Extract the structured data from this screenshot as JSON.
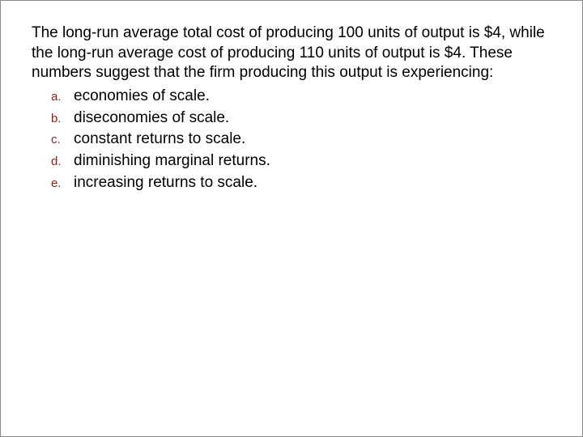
{
  "question": {
    "text": "The long-run average total cost of producing 100 units of output is $4, while the long-run average cost of producing 110 units of output is $4.  These numbers suggest that the firm producing this output is experiencing:",
    "text_color": "#000000",
    "fontsize": 19
  },
  "options": [
    {
      "marker": "a.",
      "text": "economies of scale."
    },
    {
      "marker": "b.",
      "text": "diseconomies of scale."
    },
    {
      "marker": "c.",
      "text": "constant returns to scale."
    },
    {
      "marker": "d.",
      "text": "diminishing marginal returns."
    },
    {
      "marker": "e.",
      "text": "increasing returns to scale."
    }
  ],
  "styling": {
    "marker_color": "#9a1a1a",
    "marker_fontsize": 15,
    "option_text_color": "#000000",
    "option_fontsize": 19,
    "background_color": "#ffffff",
    "border_color": "#888888",
    "line_height": 1.3
  }
}
